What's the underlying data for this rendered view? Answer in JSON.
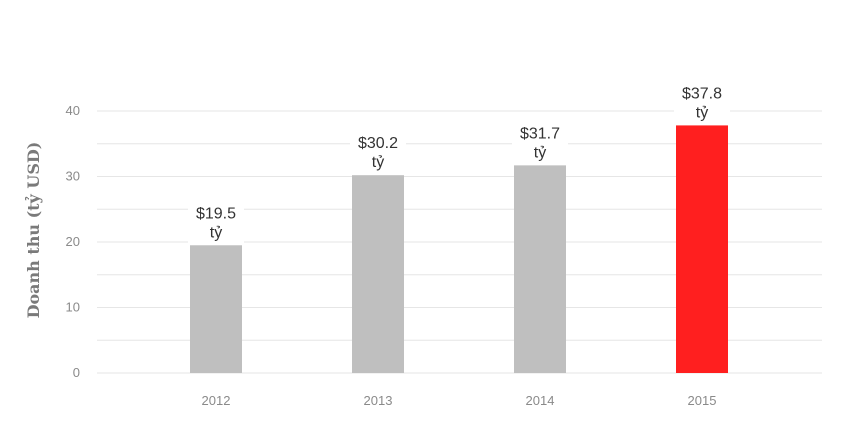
{
  "chart_data": {
    "type": "bar",
    "categories": [
      "2012",
      "2013",
      "2014",
      "2015"
    ],
    "values": [
      19.5,
      30.2,
      31.7,
      37.8
    ],
    "data_labels": [
      [
        "$19.5",
        "tỷ"
      ],
      [
        "$30.2",
        "tỷ"
      ],
      [
        "$31.7",
        "tỷ"
      ],
      [
        "$37.8",
        "tỷ"
      ]
    ],
    "bar_colors": [
      "#bfbfbf",
      "#bfbfbf",
      "#bfbfbf",
      "#ff1f1f"
    ],
    "ylabel": "Doanh thu (tỷ USD)",
    "xlabel": "",
    "ylim": [
      0,
      40
    ],
    "yticks": [
      0,
      10,
      20,
      30,
      40
    ],
    "grid": true,
    "grid_color": "#e6e6e6"
  }
}
